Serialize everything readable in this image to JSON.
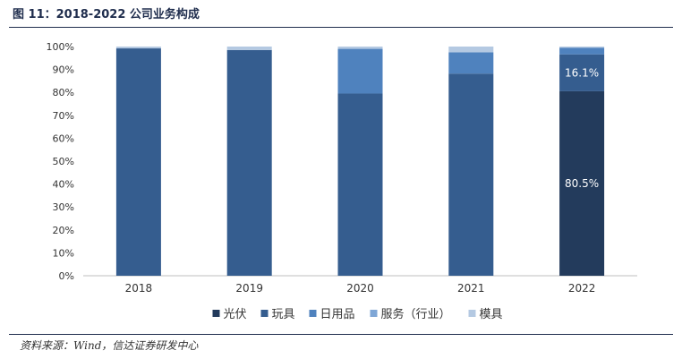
{
  "figure": {
    "title": "图 11：2018-2022 公司业务构成",
    "source": "资料来源：Wind，信达证券研发中心"
  },
  "chart_data": {
    "type": "bar",
    "stacked": true,
    "categories": [
      "2018",
      "2019",
      "2020",
      "2021",
      "2022"
    ],
    "ylim": [
      0,
      100
    ],
    "yticks": [
      0,
      10,
      20,
      30,
      40,
      50,
      60,
      70,
      80,
      90,
      100
    ],
    "ytick_suffix": "%",
    "legend_position": "bottom",
    "series": [
      {
        "name": "光伏",
        "color": "#233b5c",
        "values": [
          0,
          0,
          0,
          0,
          80.5
        ]
      },
      {
        "name": "玩具",
        "color": "#355d8f",
        "values": [
          99.2,
          98.5,
          79.5,
          88.2,
          16.1
        ]
      },
      {
        "name": "日用品",
        "color": "#4f82be",
        "values": [
          0,
          0,
          19.5,
          9.3,
          2.9
        ]
      },
      {
        "name": "服务（行业）",
        "color": "#7ea6d6",
        "values": [
          0,
          0,
          0,
          0,
          0
        ]
      },
      {
        "name": "模具",
        "color": "#b4c9e2",
        "values": [
          0.8,
          1.5,
          1.0,
          2.5,
          0.5
        ]
      }
    ],
    "data_labels": [
      {
        "category": "2022",
        "series": "光伏",
        "text": "80.5%"
      },
      {
        "category": "2022",
        "series": "玩具",
        "text": "16.1%"
      }
    ]
  }
}
